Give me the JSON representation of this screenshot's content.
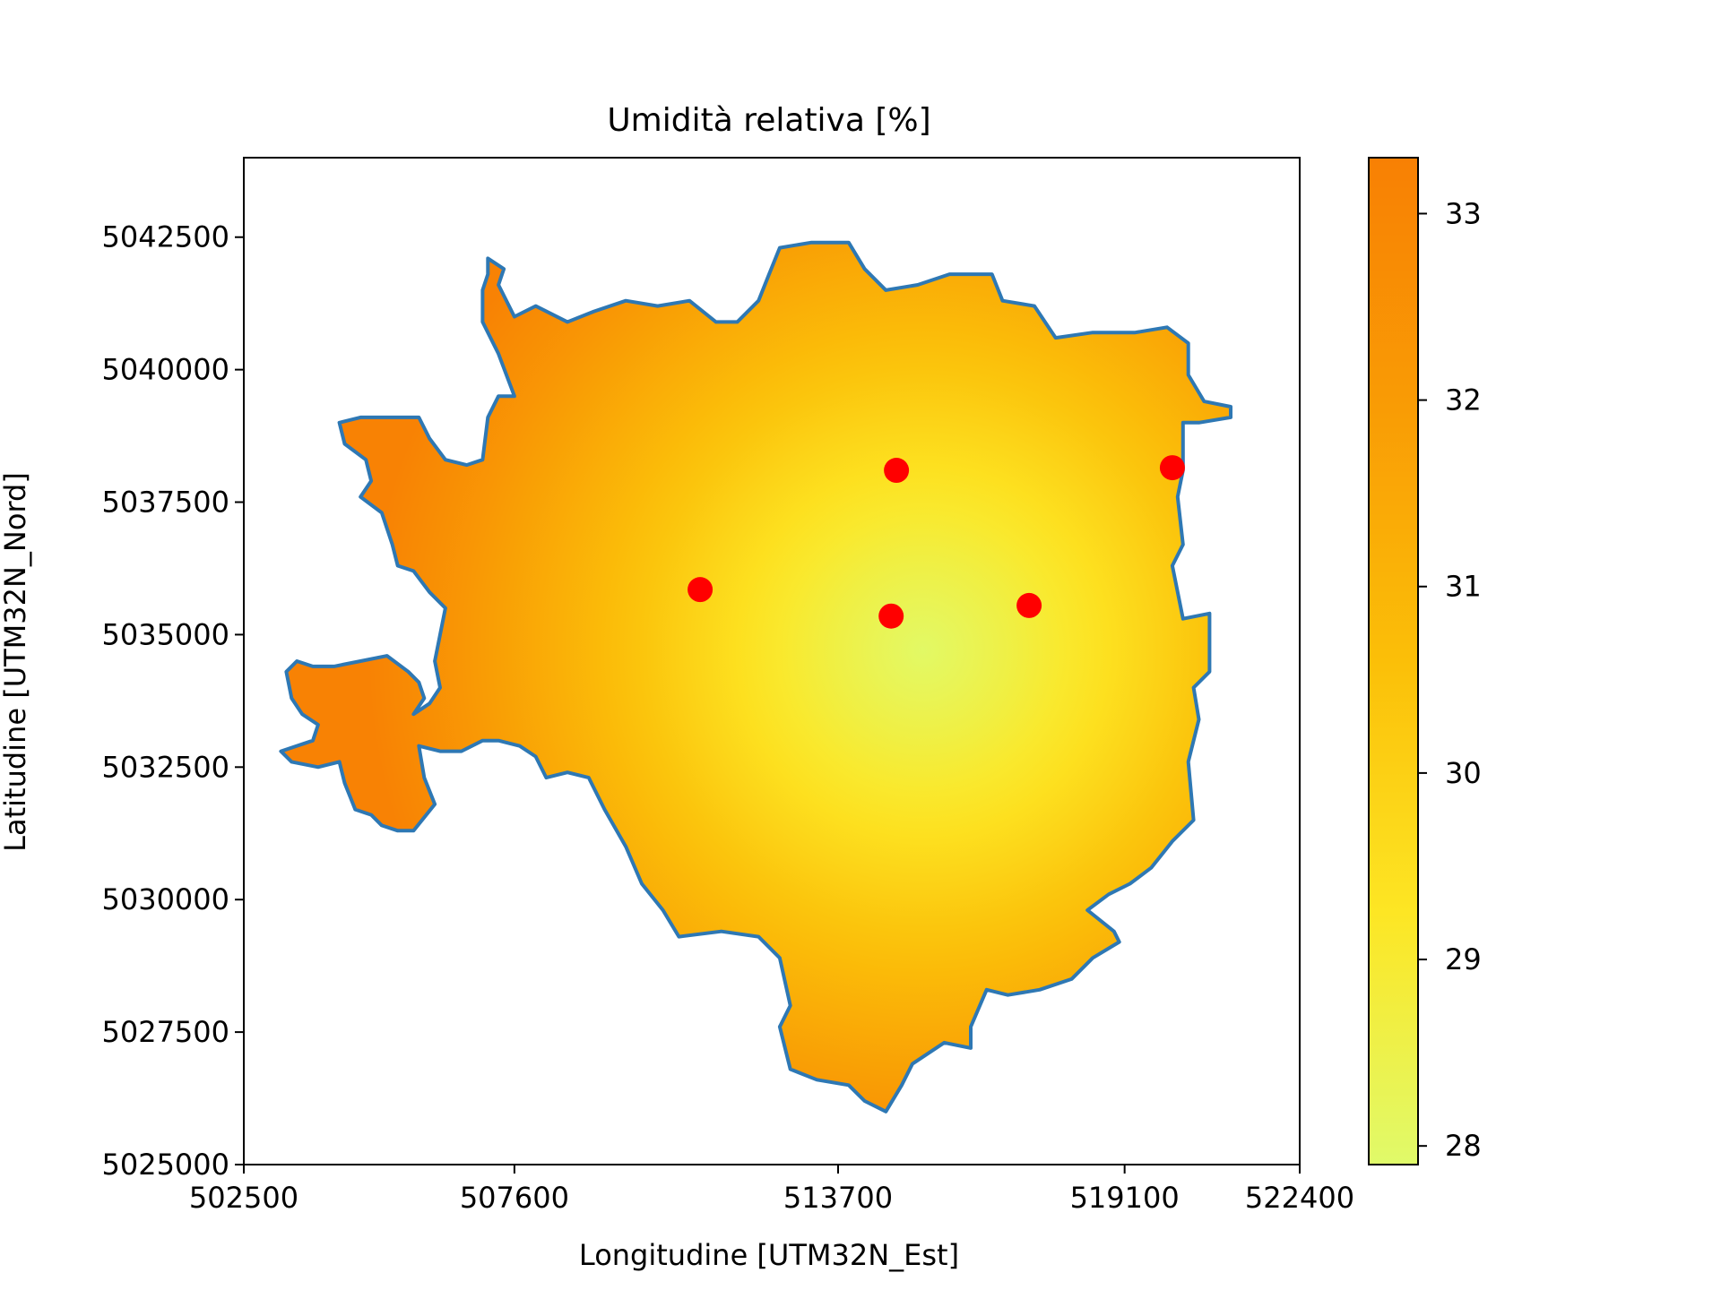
{
  "chart_data": {
    "type": "heatmap",
    "title": "Umidità relativa [%]",
    "xlabel": "Longitudine [UTM32N_Est]",
    "ylabel": "Latitudine [UTM32N_Nord]",
    "xlim": [
      502500,
      522400
    ],
    "ylim": [
      5025000,
      5044000
    ],
    "x_ticks": [
      502500,
      507600,
      513700,
      519100,
      522400
    ],
    "x_tick_labels": [
      "502500",
      "507600",
      "513700",
      "519100",
      "522400"
    ],
    "y_ticks": [
      5025000,
      5027500,
      5030000,
      5032500,
      5035000,
      5037500,
      5040000,
      5042500
    ],
    "y_tick_labels": [
      "5025000",
      "5027500",
      "5030000",
      "5032500",
      "5035000",
      "5037500",
      "5040000",
      "5042500"
    ],
    "colorbar": {
      "range": [
        27.9,
        33.3
      ],
      "ticks": [
        28,
        29,
        30,
        31,
        32,
        33
      ],
      "tick_labels": [
        "28",
        "29",
        "30",
        "31",
        "32",
        "33"
      ],
      "colors": [
        "#e0fa6a",
        "#fde624",
        "#fbbf08",
        "#f99c05",
        "#f88004"
      ]
    },
    "field": {
      "min_value": 28.0,
      "max_value": 33.2,
      "min_location": [
        515300,
        5034700
      ],
      "description_of_gradient": "radial"
    },
    "boundary_color": "#2e78b4",
    "station_color": "#ff0000",
    "stations": [
      {
        "x": 511100,
        "y": 5035850
      },
      {
        "x": 514700,
        "y": 5035350
      },
      {
        "x": 514800,
        "y": 5038100
      },
      {
        "x": 517300,
        "y": 5035550
      },
      {
        "x": 520000,
        "y": 5038150
      }
    ],
    "boundary": [
      [
        507100,
        5042100
      ],
      [
        507400,
        5041900
      ],
      [
        507300,
        5041600
      ],
      [
        507600,
        5041000
      ],
      [
        508000,
        5041200
      ],
      [
        508600,
        5040900
      ],
      [
        509100,
        5041100
      ],
      [
        509700,
        5041300
      ],
      [
        510300,
        5041200
      ],
      [
        510900,
        5041300
      ],
      [
        511400,
        5040900
      ],
      [
        511800,
        5040900
      ],
      [
        512200,
        5041300
      ],
      [
        512400,
        5041800
      ],
      [
        512600,
        5042300
      ],
      [
        513200,
        5042400
      ],
      [
        513900,
        5042400
      ],
      [
        514200,
        5041900
      ],
      [
        514600,
        5041500
      ],
      [
        515200,
        5041600
      ],
      [
        515800,
        5041800
      ],
      [
        516600,
        5041800
      ],
      [
        516800,
        5041300
      ],
      [
        517400,
        5041200
      ],
      [
        517800,
        5040600
      ],
      [
        518500,
        5040700
      ],
      [
        519300,
        5040700
      ],
      [
        519900,
        5040800
      ],
      [
        520300,
        5040500
      ],
      [
        520300,
        5039900
      ],
      [
        520600,
        5039400
      ],
      [
        521100,
        5039300
      ],
      [
        521100,
        5039100
      ],
      [
        520500,
        5039000
      ],
      [
        520200,
        5039000
      ],
      [
        520200,
        5038100
      ],
      [
        520100,
        5037600
      ],
      [
        520200,
        5036700
      ],
      [
        520000,
        5036300
      ],
      [
        520200,
        5035300
      ],
      [
        520700,
        5035400
      ],
      [
        520700,
        5034300
      ],
      [
        520400,
        5034000
      ],
      [
        520500,
        5033400
      ],
      [
        520300,
        5032600
      ],
      [
        520400,
        5031500
      ],
      [
        520000,
        5031100
      ],
      [
        519600,
        5030600
      ],
      [
        519200,
        5030300
      ],
      [
        518800,
        5030100
      ],
      [
        518400,
        5029800
      ],
      [
        518900,
        5029400
      ],
      [
        519000,
        5029200
      ],
      [
        518500,
        5028900
      ],
      [
        518100,
        5028500
      ],
      [
        517500,
        5028300
      ],
      [
        516900,
        5028200
      ],
      [
        516500,
        5028300
      ],
      [
        516200,
        5027600
      ],
      [
        516200,
        5027200
      ],
      [
        515700,
        5027300
      ],
      [
        515100,
        5026900
      ],
      [
        514900,
        5026500
      ],
      [
        514600,
        5026000
      ],
      [
        514200,
        5026200
      ],
      [
        513900,
        5026500
      ],
      [
        513300,
        5026600
      ],
      [
        512800,
        5026800
      ],
      [
        512600,
        5027600
      ],
      [
        512800,
        5028000
      ],
      [
        512600,
        5028900
      ],
      [
        512200,
        5029300
      ],
      [
        511500,
        5029400
      ],
      [
        510700,
        5029300
      ],
      [
        510400,
        5029800
      ],
      [
        510000,
        5030300
      ],
      [
        509700,
        5031000
      ],
      [
        509300,
        5031700
      ],
      [
        509000,
        5032300
      ],
      [
        508600,
        5032400
      ],
      [
        508200,
        5032300
      ],
      [
        508000,
        5032700
      ],
      [
        507700,
        5032900
      ],
      [
        507300,
        5033000
      ],
      [
        507000,
        5033000
      ],
      [
        506600,
        5032800
      ],
      [
        506200,
        5032800
      ],
      [
        505800,
        5032900
      ],
      [
        505900,
        5032300
      ],
      [
        506100,
        5031800
      ],
      [
        505700,
        5031300
      ],
      [
        505400,
        5031300
      ],
      [
        505100,
        5031400
      ],
      [
        504900,
        5031600
      ],
      [
        504600,
        5031700
      ],
      [
        504400,
        5032200
      ],
      [
        504300,
        5032600
      ],
      [
        503900,
        5032500
      ],
      [
        503400,
        5032600
      ],
      [
        503200,
        5032800
      ],
      [
        503800,
        5033000
      ],
      [
        503900,
        5033300
      ],
      [
        503600,
        5033500
      ],
      [
        503400,
        5033800
      ],
      [
        503300,
        5034300
      ],
      [
        503500,
        5034500
      ],
      [
        503800,
        5034400
      ],
      [
        504200,
        5034400
      ],
      [
        504700,
        5034500
      ],
      [
        505200,
        5034600
      ],
      [
        505600,
        5034300
      ],
      [
        505800,
        5034100
      ],
      [
        505900,
        5033800
      ],
      [
        505700,
        5033500
      ],
      [
        506000,
        5033700
      ],
      [
        506200,
        5034000
      ],
      [
        506100,
        5034500
      ],
      [
        506200,
        5035000
      ],
      [
        506300,
        5035500
      ],
      [
        506000,
        5035800
      ],
      [
        505700,
        5036200
      ],
      [
        505400,
        5036300
      ],
      [
        505300,
        5036700
      ],
      [
        505100,
        5037300
      ],
      [
        504700,
        5037600
      ],
      [
        504900,
        5037900
      ],
      [
        504800,
        5038300
      ],
      [
        504400,
        5038600
      ],
      [
        504300,
        5039000
      ],
      [
        504700,
        5039100
      ],
      [
        505200,
        5039100
      ],
      [
        505800,
        5039100
      ],
      [
        506000,
        5038700
      ],
      [
        506300,
        5038300
      ],
      [
        506700,
        5038200
      ],
      [
        507000,
        5038300
      ],
      [
        507100,
        5039100
      ],
      [
        507300,
        5039500
      ],
      [
        507600,
        5039500
      ],
      [
        507300,
        5040300
      ],
      [
        507000,
        5040900
      ],
      [
        507000,
        5041500
      ],
      [
        507100,
        5041800
      ]
    ]
  }
}
